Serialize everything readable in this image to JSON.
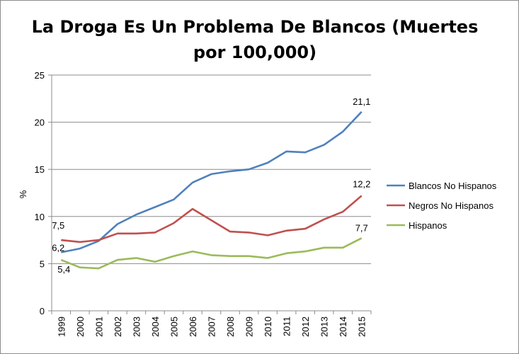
{
  "chart_data": {
    "type": "line",
    "title": "La Droga Es Un Problema De Blancos (Muertes por 100,000)",
    "ylabel": "%",
    "xlabel": "",
    "ylim": [
      0,
      25
    ],
    "yticks": [
      0,
      5,
      10,
      15,
      20,
      25
    ],
    "grid": true,
    "legend_position": "right",
    "categories": [
      "1999",
      "2000",
      "2001",
      "2002",
      "2003",
      "2004",
      "2005",
      "2006",
      "2007",
      "2008",
      "2009",
      "2010",
      "2011",
      "2012",
      "2013",
      "2014",
      "2015"
    ],
    "series": [
      {
        "name": "Blancos No Hispanos",
        "color": "#4f81bd",
        "values": [
          6.2,
          6.6,
          7.4,
          9.2,
          10.2,
          11.0,
          11.8,
          13.6,
          14.5,
          14.8,
          15.0,
          15.7,
          16.9,
          16.8,
          17.6,
          19.0,
          21.1
        ],
        "labels": [
          {
            "index": 0,
            "text": "6,2"
          },
          {
            "index": 16,
            "text": "21,1"
          }
        ]
      },
      {
        "name": "Negros No Hispanos",
        "color": "#c0504d",
        "values": [
          7.5,
          7.3,
          7.5,
          8.2,
          8.2,
          8.3,
          9.3,
          10.8,
          9.6,
          8.4,
          8.3,
          8.0,
          8.5,
          8.7,
          9.7,
          10.5,
          12.2
        ],
        "labels": [
          {
            "index": 0,
            "text": "7,5"
          },
          {
            "index": 16,
            "text": "12,2"
          }
        ]
      },
      {
        "name": "Hispanos",
        "color": "#9bbb59",
        "values": [
          5.4,
          4.6,
          4.5,
          5.4,
          5.6,
          5.2,
          5.8,
          6.3,
          5.9,
          5.8,
          5.8,
          5.6,
          6.1,
          6.3,
          6.7,
          6.7,
          7.7
        ],
        "labels": [
          {
            "index": 0,
            "text": "5,4"
          },
          {
            "index": 16,
            "text": "7,7"
          }
        ]
      }
    ]
  }
}
